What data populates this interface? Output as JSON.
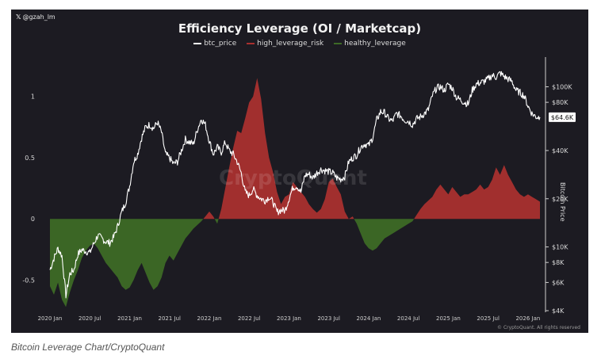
{
  "chart_data": {
    "type": "area",
    "title": "Efficiency Leverage (OI / Marketcap)",
    "handle": "@gzah_lm",
    "legend": [
      "btc_price",
      "high_leverage_risk",
      "healthy_leverage"
    ],
    "colors": {
      "btc_price": "#ffffff",
      "high_leverage_risk": "#a9302f",
      "healthy_leverage": "#3d6a26",
      "background": "#1c1b22"
    },
    "x_ticks": [
      "2020 Jan",
      "2020 Jul",
      "2021 Jan",
      "2021 Jul",
      "2022 Jan",
      "2022 Jul",
      "2023 Jan",
      "2023 Jul",
      "2024 Jan",
      "2024 Jul",
      "2025 Jan",
      "2025 Jul",
      "2026 Jan"
    ],
    "x_range": [
      2019.95,
      2026.2
    ],
    "y_left_ticks": [
      "1",
      "0.5",
      "0",
      "-0.5"
    ],
    "y_left_range": [
      -0.75,
      1.27
    ],
    "y_right_label": "Bitcoin Price",
    "y_right_ticks": [
      "$100K",
      "$80K",
      "$40K",
      "$20K",
      "$10K",
      "$8K",
      "$6K",
      "$4K"
    ],
    "y_right_tick_values": [
      100000,
      80000,
      40000,
      20000,
      10000,
      8000,
      6000,
      4000
    ],
    "y_right_range_log": [
      4000,
      140000
    ],
    "current_price_label": "$64.6K",
    "current_price_value": 64600,
    "leverage": {
      "x": [
        2020.0,
        2020.05,
        2020.1,
        2020.15,
        2020.2,
        2020.25,
        2020.3,
        2020.35,
        2020.4,
        2020.45,
        2020.5,
        2020.55,
        2020.6,
        2020.65,
        2020.7,
        2020.75,
        2020.8,
        2020.85,
        2020.9,
        2020.95,
        2021.0,
        2021.05,
        2021.1,
        2021.15,
        2021.2,
        2021.25,
        2021.3,
        2021.35,
        2021.4,
        2021.45,
        2021.5,
        2021.55,
        2021.6,
        2021.65,
        2021.7,
        2021.75,
        2021.8,
        2021.85,
        2021.9,
        2021.95,
        2022.0,
        2022.05,
        2022.1,
        2022.15,
        2022.2,
        2022.25,
        2022.3,
        2022.35,
        2022.4,
        2022.45,
        2022.5,
        2022.55,
        2022.6,
        2022.65,
        2022.7,
        2022.75,
        2022.8,
        2022.85,
        2022.9,
        2022.95,
        2023.0,
        2023.05,
        2023.1,
        2023.15,
        2023.2,
        2023.25,
        2023.3,
        2023.35,
        2023.4,
        2023.45,
        2023.5,
        2023.55,
        2023.6,
        2023.65,
        2023.7,
        2023.75,
        2023.8,
        2023.85,
        2023.9,
        2023.95,
        2024.0,
        2024.05,
        2024.1,
        2024.15,
        2024.2,
        2024.25,
        2024.3,
        2024.35,
        2024.4,
        2024.45,
        2024.5,
        2024.55,
        2024.6,
        2024.65,
        2024.7,
        2024.75,
        2024.8,
        2024.85,
        2024.9,
        2024.95,
        2025.0,
        2025.05,
        2025.1,
        2025.15,
        2025.2,
        2025.25,
        2025.3,
        2025.35,
        2025.4,
        2025.45,
        2025.5,
        2025.55,
        2025.6,
        2025.65,
        2025.7,
        2025.75,
        2025.8,
        2025.85,
        2025.9,
        2025.95,
        2026.0,
        2026.05,
        2026.1,
        2026.15
      ],
      "values": [
        -0.55,
        -0.62,
        -0.52,
        -0.66,
        -0.72,
        -0.6,
        -0.5,
        -0.42,
        -0.32,
        -0.26,
        -0.22,
        -0.2,
        -0.24,
        -0.3,
        -0.36,
        -0.4,
        -0.44,
        -0.48,
        -0.55,
        -0.58,
        -0.56,
        -0.5,
        -0.42,
        -0.36,
        -0.44,
        -0.52,
        -0.58,
        -0.55,
        -0.48,
        -0.36,
        -0.3,
        -0.34,
        -0.28,
        -0.22,
        -0.16,
        -0.12,
        -0.08,
        -0.05,
        -0.02,
        0.02,
        0.06,
        0.02,
        -0.04,
        0.08,
        0.25,
        0.42,
        0.58,
        0.72,
        0.7,
        0.82,
        0.95,
        1.0,
        1.15,
        0.98,
        0.7,
        0.5,
        0.38,
        0.22,
        0.12,
        0.18,
        0.2,
        0.3,
        0.26,
        0.22,
        0.18,
        0.12,
        0.08,
        0.05,
        0.08,
        0.16,
        0.3,
        0.33,
        0.26,
        0.2,
        0.06,
        0.0,
        0.02,
        -0.04,
        -0.12,
        -0.2,
        -0.24,
        -0.26,
        -0.24,
        -0.2,
        -0.16,
        -0.14,
        -0.12,
        -0.1,
        -0.08,
        -0.06,
        -0.04,
        -0.02,
        0.03,
        0.08,
        0.12,
        0.15,
        0.18,
        0.24,
        0.28,
        0.24,
        0.2,
        0.26,
        0.22,
        0.18,
        0.2,
        0.2,
        0.22,
        0.24,
        0.28,
        0.24,
        0.26,
        0.32,
        0.42,
        0.36,
        0.44,
        0.36,
        0.3,
        0.24,
        0.2,
        0.18,
        0.2,
        0.18,
        0.16,
        0.14
      ]
    },
    "btc_price": {
      "x": [
        2020.0,
        2020.05,
        2020.1,
        2020.15,
        2020.2,
        2020.25,
        2020.3,
        2020.35,
        2020.4,
        2020.45,
        2020.5,
        2020.55,
        2020.6,
        2020.65,
        2020.7,
        2020.75,
        2020.8,
        2020.85,
        2020.9,
        2020.95,
        2021.0,
        2021.05,
        2021.1,
        2021.15,
        2021.2,
        2021.25,
        2021.3,
        2021.35,
        2021.4,
        2021.45,
        2021.5,
        2021.55,
        2021.6,
        2021.65,
        2021.7,
        2021.75,
        2021.8,
        2021.85,
        2021.9,
        2021.95,
        2022.0,
        2022.05,
        2022.1,
        2022.15,
        2022.2,
        2022.25,
        2022.3,
        2022.35,
        2022.4,
        2022.45,
        2022.5,
        2022.55,
        2022.6,
        2022.65,
        2022.7,
        2022.75,
        2022.8,
        2022.85,
        2022.9,
        2022.95,
        2023.0,
        2023.05,
        2023.1,
        2023.15,
        2023.2,
        2023.25,
        2023.3,
        2023.35,
        2023.4,
        2023.45,
        2023.5,
        2023.55,
        2023.6,
        2023.65,
        2023.7,
        2023.75,
        2023.8,
        2023.85,
        2023.9,
        2023.95,
        2024.0,
        2024.05,
        2024.1,
        2024.15,
        2024.2,
        2024.25,
        2024.3,
        2024.35,
        2024.4,
        2024.45,
        2024.5,
        2024.55,
        2024.6,
        2024.65,
        2024.7,
        2024.75,
        2024.8,
        2024.85,
        2024.9,
        2024.95,
        2025.0,
        2025.05,
        2025.1,
        2025.15,
        2025.2,
        2025.25,
        2025.3,
        2025.35,
        2025.4,
        2025.45,
        2025.5,
        2025.55,
        2025.6,
        2025.65,
        2025.7,
        2025.75,
        2025.8,
        2025.85,
        2025.9,
        2025.95,
        2026.0,
        2026.05,
        2026.1,
        2026.15
      ],
      "values": [
        7200,
        8500,
        9800,
        8800,
        5000,
        6800,
        7200,
        9000,
        9600,
        9400,
        9200,
        10500,
        11800,
        11300,
        10800,
        10600,
        11500,
        13500,
        16500,
        19000,
        24000,
        34000,
        38000,
        48000,
        56000,
        58000,
        55000,
        60000,
        52000,
        38000,
        36000,
        33000,
        34000,
        40000,
        47000,
        45000,
        44000,
        54000,
        63000,
        58000,
        46000,
        38000,
        42000,
        39000,
        45000,
        40000,
        38000,
        34000,
        29000,
        22000,
        21000,
        23000,
        21000,
        20000,
        19500,
        20500,
        19000,
        16500,
        17000,
        16800,
        20000,
        23500,
        24000,
        22000,
        28000,
        28500,
        27000,
        29000,
        30500,
        30000,
        29500,
        29000,
        27000,
        26500,
        27500,
        34000,
        36000,
        37500,
        42000,
        44000,
        43000,
        48000,
        62000,
        70000,
        69000,
        63000,
        61000,
        68000,
        66000,
        62000,
        61000,
        58000,
        63000,
        65000,
        68000,
        72000,
        88000,
        98000,
        100000,
        95000,
        104000,
        98000,
        86000,
        83000,
        80000,
        78000,
        95000,
        104000,
        106000,
        108000,
        112000,
        118000,
        115000,
        122000,
        116000,
        112000,
        108000,
        95000,
        92000,
        88000,
        76000,
        68000,
        65000,
        64600
      ]
    }
  },
  "caption": "Bitcoin Leverage Chart/CryptoQuant",
  "copyright": "© CryptoQuant. All rights reserved",
  "watermark": "CryptoQuant"
}
